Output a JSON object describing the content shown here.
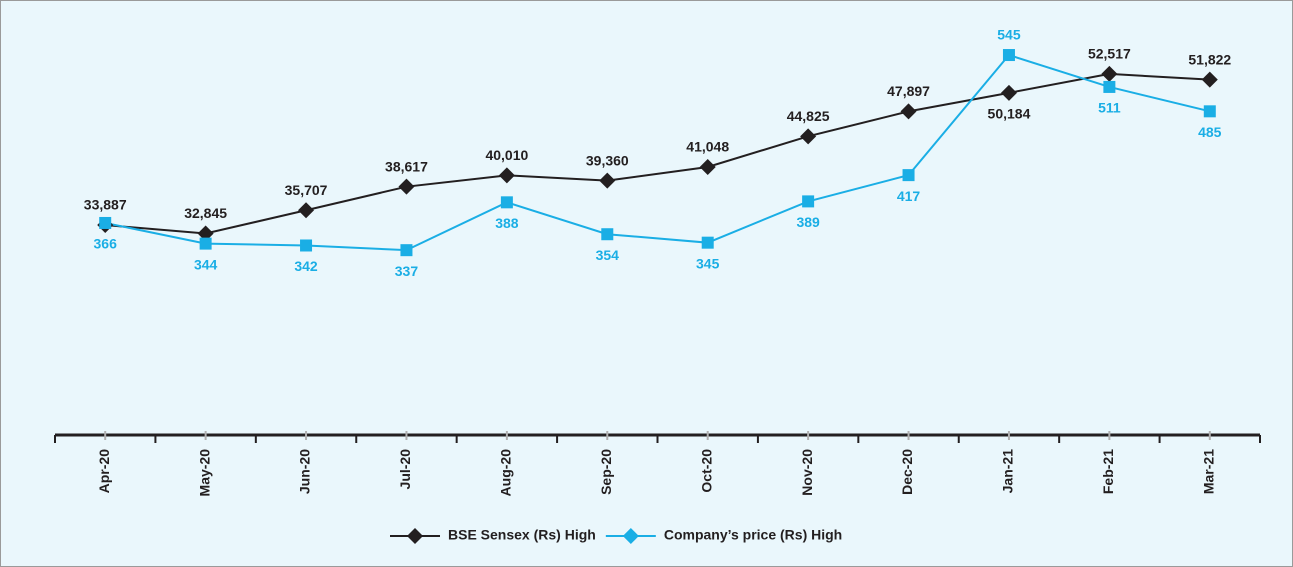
{
  "chart_data": {
    "type": "line",
    "categories": [
      "Apr-20",
      "May-20",
      "Jun-20",
      "Jul-20",
      "Aug-20",
      "Sep-20",
      "Oct-20",
      "Nov-20",
      "Dec-20",
      "Jan-21",
      "Feb-21",
      "Mar-21"
    ],
    "ylim": [
      8000,
      60400
    ],
    "y2lim": [
      140,
      593
    ],
    "legend": "bottom",
    "series": [
      {
        "name": "BSE Sensex (Rs) High",
        "color": "#231f20",
        "marker": "diamond",
        "axis": "y",
        "values": [
          33887,
          32845,
          35707,
          38617,
          40010,
          39360,
          41048,
          44825,
          47897,
          50184,
          52517,
          51822
        ],
        "value_labels": [
          "33,887",
          "32,845",
          "35,707",
          "38,617",
          "40,010",
          "39,360",
          "41,048",
          "44,825",
          "47,897",
          "50,184",
          "52,517",
          "51,822"
        ]
      },
      {
        "name": "Company’s price (Rs) High",
        "color": "#1aaee5",
        "marker": "square",
        "axis": "y2",
        "values": [
          366,
          344,
          342,
          337,
          388,
          354,
          345,
          389,
          417,
          545,
          511,
          485
        ]
      }
    ]
  }
}
